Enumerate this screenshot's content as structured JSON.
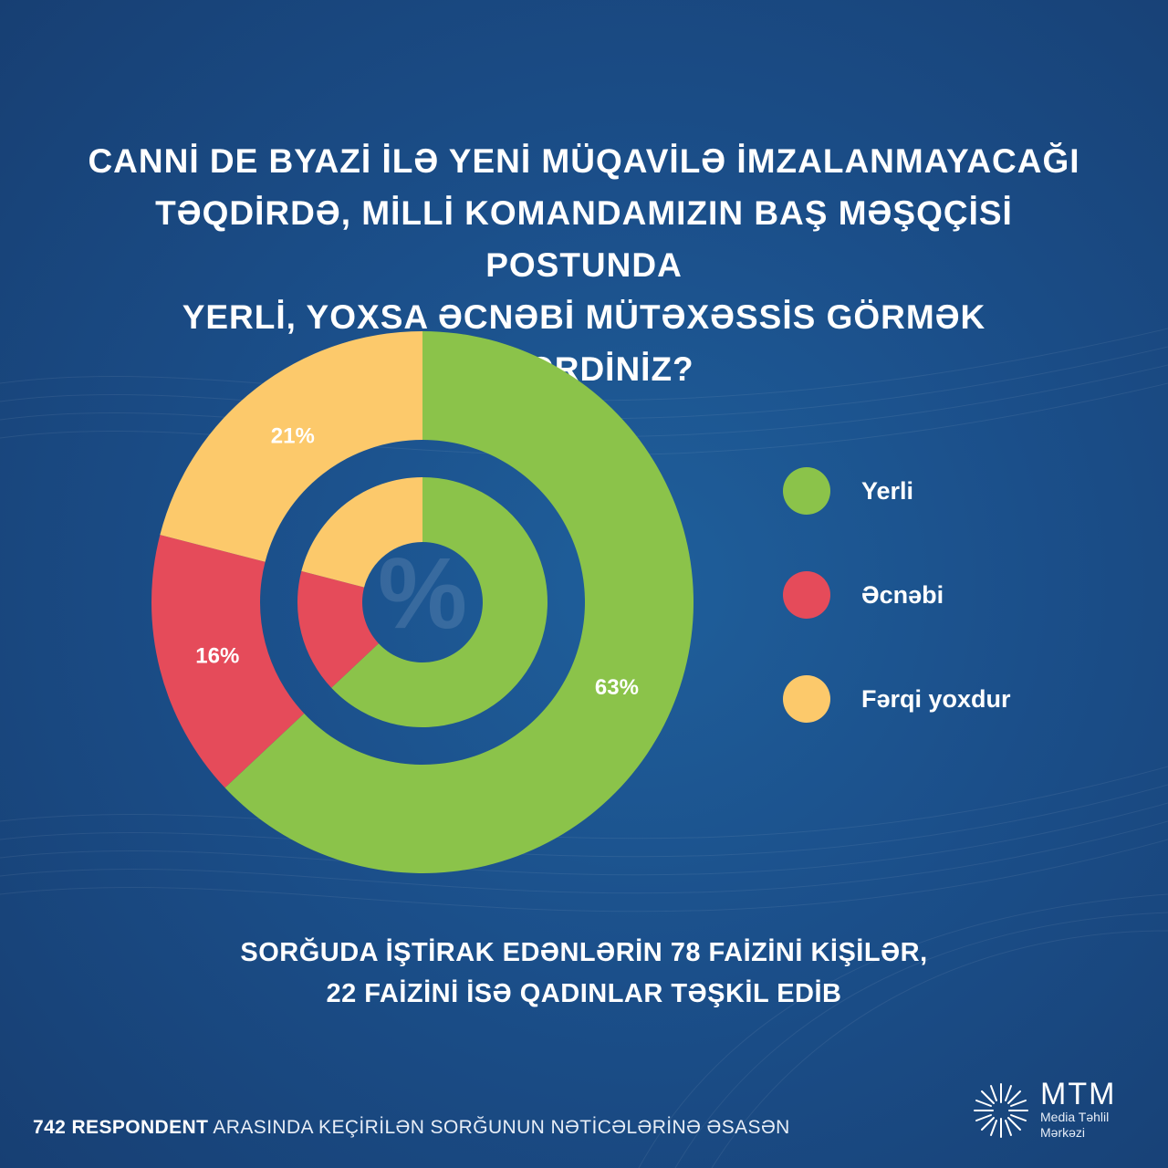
{
  "title_lines": [
    "CANNİ DE BYAZİ İLƏ YENİ MÜQAVİLƏ İMZALANMAYACAĞI",
    "TƏQDİRDƏ, MİLLİ KOMANDAMIZIN BAŞ MƏŞQÇİSİ POSTUNDA",
    "YERLİ, YOXSA ƏCNƏBİ MÜTƏXƏSSİS GÖRMƏK İSTƏRDİNİZ?"
  ],
  "center_symbol": "%",
  "chart_data": {
    "type": "pie",
    "style": "double-donut",
    "categories": [
      "Yerli",
      "Əcnəbi",
      "Fərqi yoxdur"
    ],
    "values": [
      63,
      16,
      21
    ],
    "value_labels": [
      "63%",
      "16%",
      "21%"
    ],
    "colors": [
      "#8bc34a",
      "#e54b5a",
      "#fcc96b"
    ],
    "legend_position": "right"
  },
  "note_lines": [
    "SORĞUDA İŞTİRAK EDƏNLƏRİN 78 FAİZİNİ KİŞİLƏR,",
    "22 FAİZİNİ İSƏ QADINLAR TƏŞKİL EDİB"
  ],
  "source": {
    "bold": "742 RESPONDENT",
    "rest": " ARASINDA KEÇİRİLƏN SORĞUNUN NƏTİCƏLƏRİNƏ ƏSASƏN"
  },
  "logo": {
    "main": "MTM",
    "line1": "Media Təhlil",
    "line2": "Mərkəzi"
  }
}
